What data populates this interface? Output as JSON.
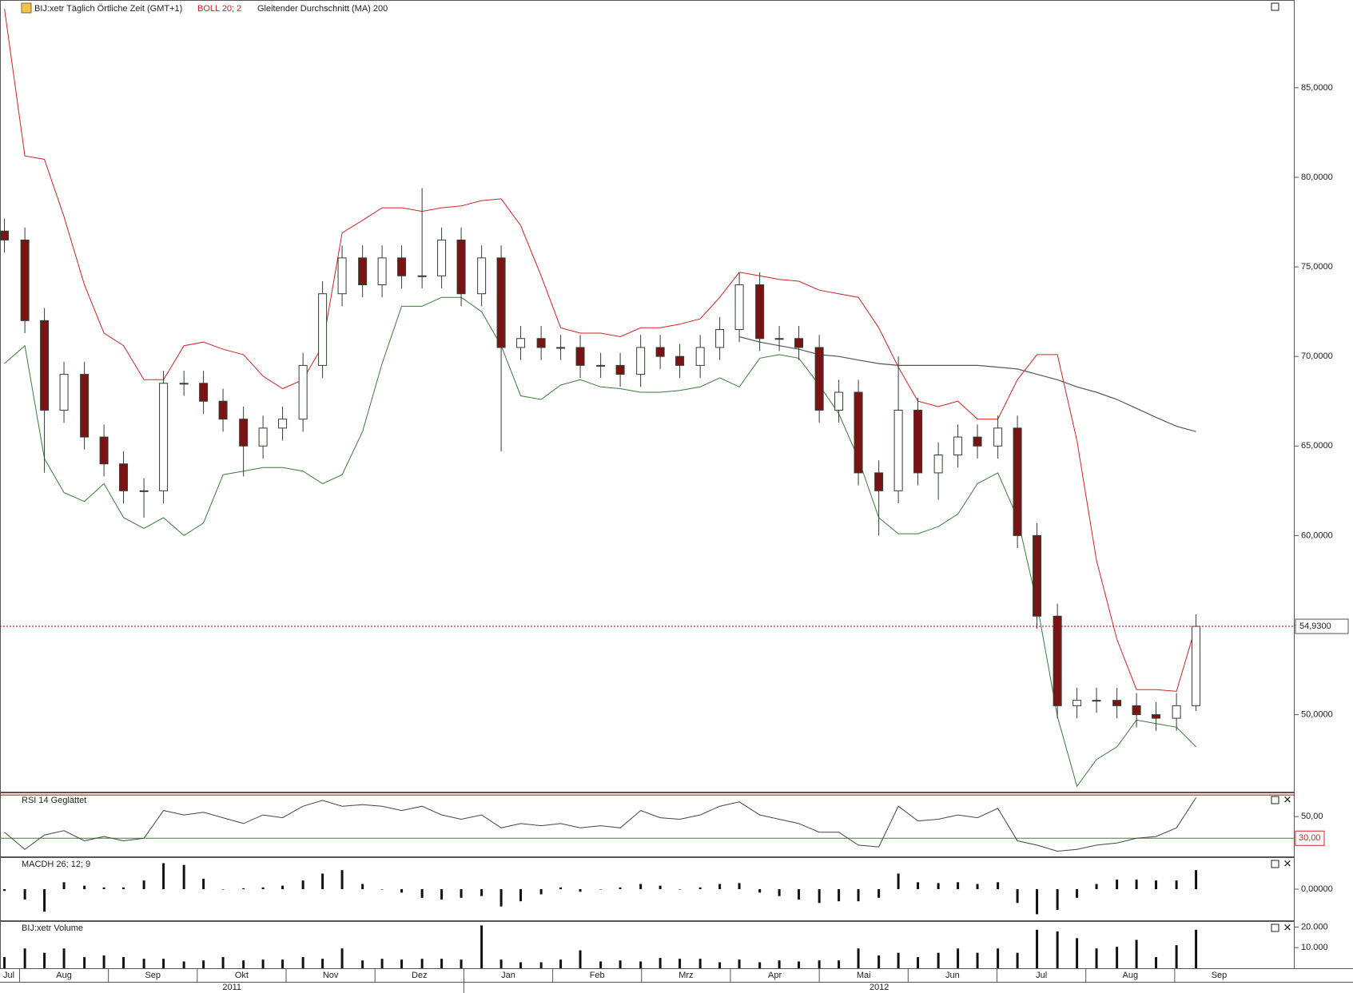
{
  "chart_data": [
    {
      "type": "candlestick",
      "title": "BIJ:xetr Täglich Örtliche Zeit (GMT+1)",
      "x": [
        0.83,
        1.06,
        1.28,
        1.5,
        1.73,
        1.95,
        2.17,
        2.4,
        2.62,
        2.85,
        3.07,
        3.29,
        3.52,
        3.74,
        3.96,
        4.19,
        4.41,
        4.63,
        4.86,
        5.08,
        5.3,
        5.53,
        5.75,
        5.97,
        6.2,
        6.42,
        6.64,
        6.87,
        7.09,
        7.31,
        7.54,
        7.76,
        7.99,
        8.21,
        8.43,
        8.66,
        8.88,
        9.1,
        9.33,
        9.55,
        9.77,
        10.0,
        10.22,
        10.44,
        10.67,
        10.89,
        11.11,
        11.34,
        11.56,
        11.78,
        12.01,
        12.23,
        12.45,
        12.68,
        12.9,
        13.12,
        13.35,
        13.57,
        13.79,
        14.02,
        14.24
      ],
      "xlim": [
        0.78,
        15.35
      ],
      "xticks": [
        {
          "value": 0,
          "label": "Jul"
        },
        {
          "value": 1,
          "label": "Aug"
        },
        {
          "value": 2,
          "label": "Sep"
        },
        {
          "value": 3,
          "label": "Okt"
        },
        {
          "value": 4,
          "label": "Nov"
        },
        {
          "value": 5,
          "label": "Dez"
        },
        {
          "value": 6,
          "label": "Jan"
        },
        {
          "value": 7,
          "label": "Feb"
        },
        {
          "value": 8,
          "label": "Mrz"
        },
        {
          "value": 9,
          "label": "Apr"
        },
        {
          "value": 10,
          "label": "Mai"
        },
        {
          "value": 11,
          "label": "Jun"
        },
        {
          "value": 12,
          "label": "Jul"
        },
        {
          "value": 13,
          "label": "Aug"
        },
        {
          "value": 14,
          "label": "Sep"
        }
      ],
      "year_ticks": [
        {
          "value": 0,
          "label": "2011"
        },
        {
          "value": 6,
          "label": "2012"
        }
      ],
      "ylim": [
        45.7,
        89.9
      ],
      "yticks": [
        {
          "value": 50,
          "label": "50,0000"
        },
        {
          "value": 55,
          "label": "55,0000"
        },
        {
          "value": 60,
          "label": "60,0000"
        },
        {
          "value": 65,
          "label": "65,0000"
        },
        {
          "value": 70,
          "label": "70,0000"
        },
        {
          "value": 75,
          "label": "75,0000"
        },
        {
          "value": 80,
          "label": "80,0000"
        },
        {
          "value": 85,
          "label": "85,0000"
        }
      ],
      "last_price": {
        "value": 54.93,
        "label": "54,9300",
        "color": "#c00000"
      },
      "series": [
        {
          "name": "BIJ:xetr Täglich Örtliche Zeit (GMT+1)",
          "type": "candlestick",
          "up_color": "#ffffff",
          "down_color": "#7a1414",
          "edge_color": "#2f3f2f",
          "open": [
            77,
            76.5,
            72,
            67,
            69,
            65.5,
            64,
            62.5,
            62.5,
            68.5,
            68.5,
            67.5,
            66.5,
            65,
            66,
            66.5,
            69.5,
            73.5,
            75.5,
            74,
            75.5,
            74.5,
            74.5,
            76.5,
            73.5,
            75.5,
            70.5,
            71,
            70.5,
            70.5,
            69.5,
            69.5,
            69,
            70.5,
            70,
            69.5,
            70.5,
            71.5,
            74,
            71,
            71,
            70.5,
            67,
            68,
            63.5,
            62.5,
            67,
            63.5,
            64.5,
            65.5,
            65,
            66,
            60,
            55.5,
            50.5,
            50.8,
            50.8,
            50.5,
            50,
            49.8,
            50.5
          ],
          "high": [
            77.7,
            77.2,
            72.7,
            69.7,
            69.7,
            66.2,
            64.7,
            63.2,
            69.2,
            69.2,
            69.2,
            68.2,
            67.2,
            66.7,
            67.2,
            70.2,
            74.2,
            76.2,
            76.2,
            76.2,
            76.2,
            79.4,
            77.2,
            77.2,
            76.2,
            76.2,
            71.7,
            71.7,
            71.2,
            71.2,
            70.2,
            70.2,
            71.2,
            71.2,
            70.7,
            71.2,
            72.2,
            74.7,
            74.7,
            71.7,
            71.7,
            71.2,
            68.7,
            68.7,
            64.2,
            70,
            67.7,
            65.2,
            66.2,
            66.2,
            66.7,
            66.7,
            60.7,
            56.2,
            51.5,
            51.5,
            51.5,
            51.2,
            50.7,
            51.2,
            55.6
          ],
          "low": [
            75.8,
            71.3,
            63.5,
            66.3,
            64.8,
            63.3,
            61.8,
            61,
            61.8,
            67.8,
            66.8,
            65.8,
            63.3,
            64.3,
            65.3,
            65.8,
            68.8,
            72.8,
            73.3,
            73.3,
            73.8,
            73.8,
            73.8,
            72.8,
            72.8,
            64.7,
            69.8,
            69.8,
            69.8,
            68.8,
            68.8,
            68.3,
            68.3,
            69.3,
            68.8,
            68.8,
            69.8,
            70.8,
            70.3,
            70.3,
            69.8,
            66.3,
            66.3,
            62.8,
            60,
            61.8,
            62.8,
            62,
            63.8,
            64.3,
            64.3,
            59.3,
            54.8,
            49.8,
            49.8,
            50.1,
            49.8,
            49.3,
            49.1,
            49.1,
            50.2
          ],
          "close": [
            76.5,
            72,
            67,
            69,
            65.5,
            64,
            62.5,
            62.5,
            68.5,
            68.5,
            67.5,
            66.5,
            65,
            66,
            66.5,
            69.5,
            73.5,
            75.5,
            74,
            75.5,
            74.5,
            74.5,
            76.5,
            73.5,
            75.5,
            70.5,
            71,
            70.5,
            70.5,
            69.5,
            69.5,
            69,
            70.5,
            70,
            69.5,
            70.5,
            71.5,
            74,
            71,
            71,
            70.5,
            67,
            68,
            63.5,
            62.5,
            67,
            63.5,
            64.5,
            65.5,
            65,
            66,
            60,
            55.5,
            50.5,
            50.8,
            50.8,
            50.5,
            50,
            49.8,
            50.5,
            54.93
          ]
        },
        {
          "name": "BOLL 20; 2",
          "type": "bands",
          "color": "#d62020",
          "lower_color": "#3a7a3a",
          "upper": [
            89.4,
            81.2,
            81,
            77.8,
            74,
            71.3,
            70.6,
            68.7,
            68.7,
            70.6,
            70.8,
            70.4,
            70.1,
            68.9,
            68.2,
            68.7,
            70.6,
            76.9,
            77.6,
            78.3,
            78.3,
            78.1,
            78.3,
            78.4,
            78.7,
            78.8,
            77.3,
            74.5,
            71.6,
            71.3,
            71.3,
            71.1,
            71.6,
            71.6,
            71.8,
            72.1,
            73.3,
            74.7,
            74.5,
            74.3,
            74.2,
            73.7,
            73.5,
            73.3,
            71.6,
            69.4,
            67.5,
            67.2,
            67.5,
            66.5,
            66.5,
            68.7,
            70.1,
            70.1,
            65.3,
            58.6,
            54.2,
            51.4,
            51.4,
            51.3,
            55
          ],
          "lower": [
            69.6,
            70.6,
            64.3,
            62.4,
            61.9,
            62.9,
            61,
            60.4,
            61,
            60,
            60.7,
            63.4,
            63.6,
            63.8,
            63.8,
            63.6,
            62.9,
            63.4,
            65.8,
            69.6,
            72.8,
            72.8,
            73.3,
            73.3,
            72.5,
            70.6,
            67.8,
            67.6,
            68.4,
            68.7,
            68.3,
            68.2,
            68,
            68,
            68.1,
            68.3,
            68.8,
            68.3,
            69.9,
            70.1,
            69.9,
            68.4,
            66.8,
            64.3,
            61,
            60.1,
            60.1,
            60.5,
            61.2,
            62.9,
            63.5,
            61,
            56.2,
            49.9,
            46,
            47.5,
            48.2,
            49.7,
            49.5,
            49.3,
            48.2
          ]
        },
        {
          "name": "Gleitender Durchschnitt (MA) 200",
          "type": "line",
          "color": "#555555",
          "values": [
            null,
            null,
            null,
            null,
            null,
            null,
            null,
            null,
            null,
            null,
            null,
            null,
            null,
            null,
            null,
            null,
            null,
            null,
            null,
            null,
            null,
            null,
            null,
            null,
            null,
            null,
            null,
            null,
            null,
            null,
            null,
            null,
            null,
            null,
            null,
            null,
            null,
            71.1,
            70.8,
            70.6,
            70.4,
            70.1,
            70,
            69.8,
            69.6,
            69.5,
            69.5,
            69.5,
            69.5,
            69.5,
            69.4,
            69.3,
            69,
            68.7,
            68.3,
            68,
            67.6,
            67.1,
            66.6,
            66.1,
            65.8
          ]
        }
      ]
    },
    {
      "type": "line",
      "series": [
        {
          "name": "RSI 14 Geglättet",
          "color": "#444444",
          "values": [
            35.6,
            19.6,
            33,
            37,
            27.6,
            31.6,
            27.6,
            30,
            55.6,
            51.6,
            54,
            49,
            43.6,
            51.6,
            49,
            59.6,
            65,
            59.6,
            61,
            59.6,
            55.6,
            59.6,
            51.6,
            47.6,
            51.6,
            39.6,
            43.6,
            41.6,
            43.6,
            39.6,
            41.6,
            39.6,
            55.6,
            49,
            47.6,
            51.6,
            59.6,
            63.6,
            51.6,
            47.6,
            43.6,
            35.6,
            35.6,
            23.6,
            22,
            59.6,
            46,
            47.6,
            51.6,
            49,
            57.6,
            27.6,
            23.6,
            18,
            19.6,
            23.6,
            25.6,
            30,
            31.6,
            39.6,
            67.6
          ]
        }
      ],
      "ylim": [
        13.2,
        71.6
      ],
      "yticks": [
        {
          "value": 50,
          "label": "50,00"
        }
      ],
      "levels": [
        {
          "value": 70,
          "color": "#c00000"
        },
        {
          "value": 30,
          "label": "30,00",
          "color": "#2e8b2e"
        }
      ]
    },
    {
      "type": "bar",
      "series": [
        {
          "name": "MACDH 26; 12; 9",
          "color": "#111111",
          "values": [
            -0.1,
            -0.6,
            -1.3,
            0.4,
            0.2,
            0.1,
            0.1,
            0.5,
            1.5,
            1.4,
            0.6,
            0,
            0.05,
            0.1,
            0.2,
            0.5,
            0.9,
            1.1,
            0.3,
            0,
            -0.2,
            -0.5,
            -0.6,
            -0.5,
            -0.4,
            -1,
            -0.7,
            -0.3,
            0.1,
            -0.15,
            0,
            0.1,
            0.3,
            0.2,
            0,
            0.1,
            0.3,
            0.35,
            -0.2,
            -0.4,
            -0.6,
            -0.8,
            -0.7,
            -0.7,
            -0.5,
            0.9,
            0.4,
            0.35,
            0.4,
            0.3,
            0.4,
            -0.8,
            -1.45,
            -1.2,
            -0.5,
            0.3,
            0.55,
            0.55,
            0.5,
            0.5,
            1.1
          ]
        }
      ],
      "ylim": [
        -1.8,
        1.8
      ],
      "yticks": [
        {
          "value": 0,
          "label": "0,00000"
        }
      ]
    },
    {
      "type": "bar",
      "series": [
        {
          "name": "BIJ:xetr Volume",
          "color": "#111111",
          "values": [
            5400,
            9600,
            7500,
            9600,
            5400,
            6200,
            5400,
            4600,
            4600,
            3300,
            3800,
            5400,
            3800,
            4200,
            4200,
            5400,
            4600,
            9600,
            3800,
            4600,
            4200,
            4600,
            4600,
            4200,
            20800,
            4200,
            2900,
            2900,
            4200,
            8700,
            3300,
            3800,
            3300,
            5000,
            4600,
            4600,
            2900,
            4200,
            2900,
            3800,
            3300,
            3800,
            3800,
            9600,
            6200,
            7500,
            5400,
            7500,
            9600,
            7500,
            9600,
            7500,
            18700,
            17900,
            14600,
            9600,
            10400,
            13800,
            5400,
            11200,
            18700
          ]
        }
      ],
      "ylim": [
        0,
        22500
      ],
      "yticks": [
        {
          "value": 10000,
          "label": "10.000"
        },
        {
          "value": 20000,
          "label": "20.000"
        }
      ]
    }
  ]
}
